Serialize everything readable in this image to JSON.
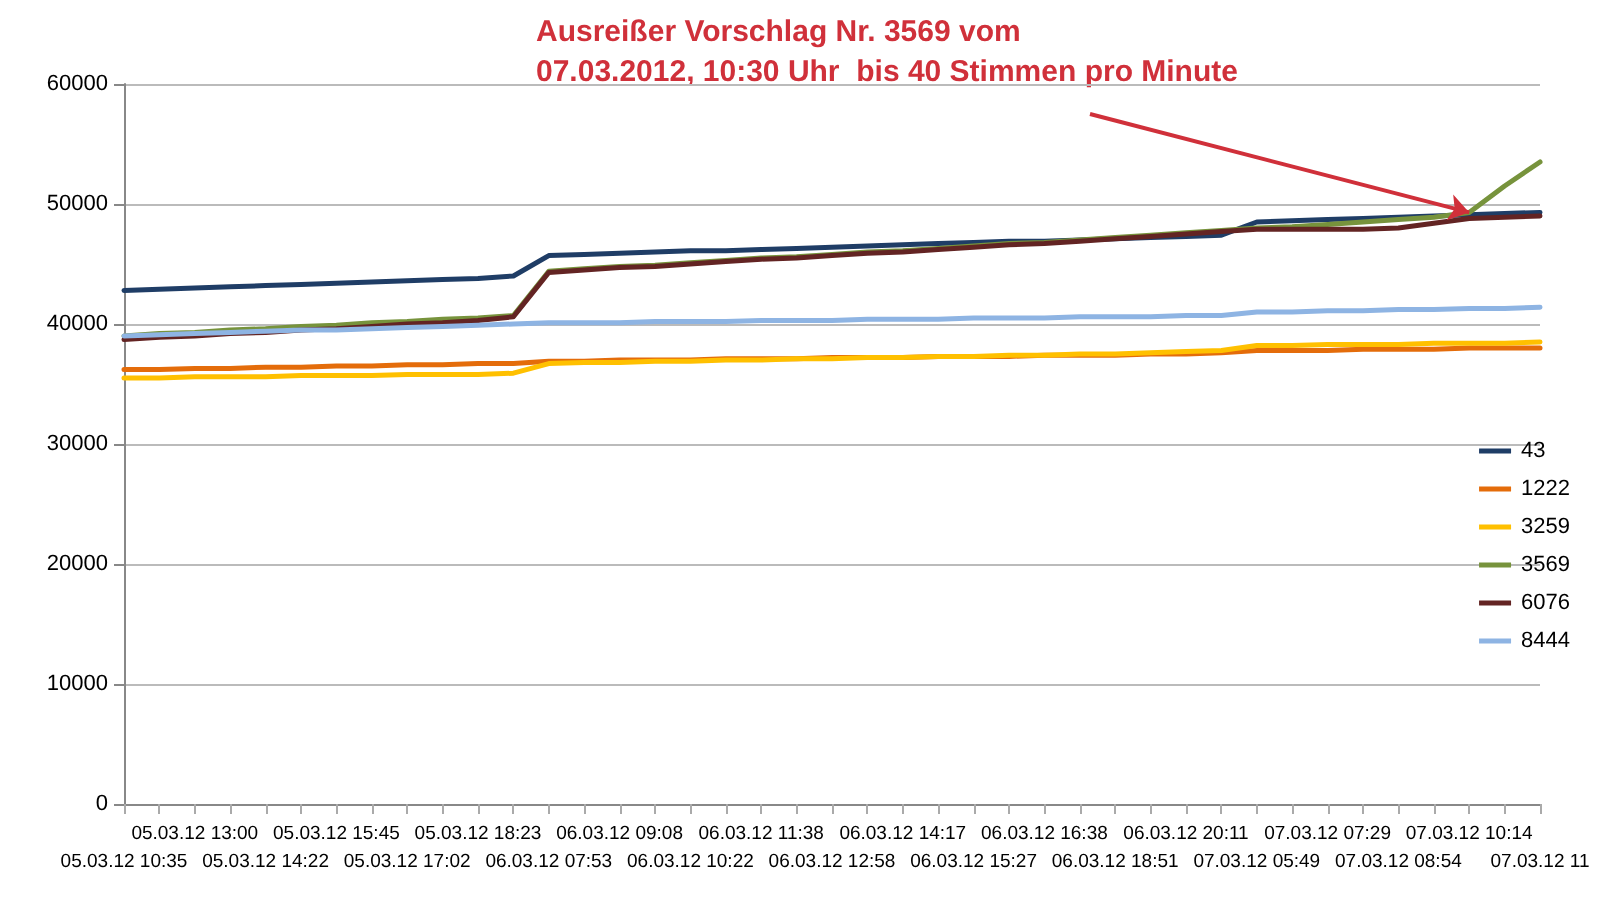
{
  "chart_data": {
    "type": "line",
    "categories": [
      "05.03.12 10:35",
      null,
      "05.03.12 13:00",
      null,
      "05.03.12 14:22",
      null,
      "05.03.12 15:45",
      null,
      "05.03.12 17:02",
      null,
      "05.03.12 18:23",
      null,
      "06.03.12 07:53",
      null,
      "06.03.12 09:08",
      null,
      "06.03.12 10:22",
      null,
      "06.03.12 11:38",
      null,
      "06.03.12 12:58",
      null,
      "06.03.12 14:17",
      null,
      "06.03.12 15:27",
      null,
      "06.03.12 16:38",
      null,
      "06.03.12 18:51",
      null,
      "06.03.12 20:11",
      null,
      "07.03.12 05:49",
      null,
      "07.03.12 07:29",
      null,
      "07.03.12 08:54",
      null,
      "07.03.12 10:14",
      null,
      "07.03.12 11"
    ],
    "series": [
      {
        "name": "43",
        "color": "#1f3d66",
        "values": [
          42800,
          42900,
          43000,
          43100,
          43200,
          43300,
          43400,
          43500,
          43600,
          43700,
          43800,
          44000,
          45700,
          45800,
          45900,
          46000,
          46100,
          46100,
          46200,
          46300,
          46400,
          46500,
          46600,
          46700,
          46800,
          46900,
          46900,
          47000,
          47100,
          47200,
          47300,
          47400,
          48500,
          48600,
          48700,
          48800,
          48900,
          49000,
          49100,
          49200,
          49300
        ]
      },
      {
        "name": "1222",
        "color": "#e46c0a",
        "values": [
          36200,
          36200,
          36300,
          36300,
          36400,
          36400,
          36500,
          36500,
          36600,
          36600,
          36700,
          36700,
          36900,
          36900,
          37000,
          37000,
          37000,
          37100,
          37100,
          37100,
          37200,
          37200,
          37200,
          37300,
          37300,
          37300,
          37400,
          37400,
          37400,
          37500,
          37500,
          37600,
          37800,
          37800,
          37800,
          37900,
          37900,
          37900,
          38000,
          38000,
          38000
        ]
      },
      {
        "name": "3259",
        "color": "#ffc000",
        "values": [
          35500,
          35500,
          35600,
          35600,
          35600,
          35700,
          35700,
          35700,
          35800,
          35800,
          35800,
          35900,
          36700,
          36800,
          36800,
          36900,
          36900,
          37000,
          37000,
          37100,
          37100,
          37200,
          37200,
          37300,
          37300,
          37400,
          37400,
          37500,
          37500,
          37600,
          37700,
          37800,
          38200,
          38200,
          38300,
          38300,
          38300,
          38400,
          38400,
          38400,
          38500
        ]
      },
      {
        "name": "3569",
        "color": "#77933c",
        "values": [
          39000,
          39200,
          39300,
          39500,
          39600,
          39800,
          39900,
          40100,
          40200,
          40400,
          40500,
          40700,
          44400,
          44600,
          44800,
          44900,
          45100,
          45300,
          45500,
          45600,
          45800,
          46000,
          46100,
          46300,
          46500,
          46700,
          46800,
          47000,
          47200,
          47400,
          47600,
          47800,
          48000,
          48100,
          48300,
          48500,
          48700,
          48900,
          49300,
          51500,
          53500
        ]
      },
      {
        "name": "6076",
        "color": "#632423",
        "values": [
          38700,
          38900,
          39000,
          39200,
          39300,
          39500,
          39600,
          39800,
          40000,
          40100,
          40300,
          40600,
          44300,
          44500,
          44700,
          44800,
          45000,
          45200,
          45400,
          45500,
          45700,
          45900,
          46000,
          46200,
          46400,
          46600,
          46700,
          46900,
          47100,
          47300,
          47500,
          47700,
          47900,
          47900,
          47900,
          47900,
          48000,
          48400,
          48800,
          48900,
          49000
        ]
      },
      {
        "name": "8444",
        "color": "#8eb4e3",
        "values": [
          39000,
          39100,
          39200,
          39300,
          39400,
          39500,
          39500,
          39600,
          39700,
          39800,
          39900,
          40000,
          40100,
          40100,
          40100,
          40200,
          40200,
          40200,
          40300,
          40300,
          40300,
          40400,
          40400,
          40400,
          40500,
          40500,
          40500,
          40600,
          40600,
          40600,
          40700,
          40700,
          41000,
          41000,
          41100,
          41100,
          41200,
          41200,
          41300,
          41300,
          41400
        ]
      }
    ],
    "ylim": [
      0,
      60000
    ],
    "yticks": [
      0,
      10000,
      20000,
      30000,
      40000,
      50000,
      60000
    ],
    "grid": "y",
    "legend": "right",
    "marker": "none",
    "line_style": "solid",
    "annotations": [
      {
        "text": "Ausreißer Vorschlag Nr. 3569 vom\n07.03.2012, 10:30 Uhr  bis 40 Stimmen pro Minute",
        "x": "07.03.12 10:14",
        "y": 49300
      }
    ]
  }
}
